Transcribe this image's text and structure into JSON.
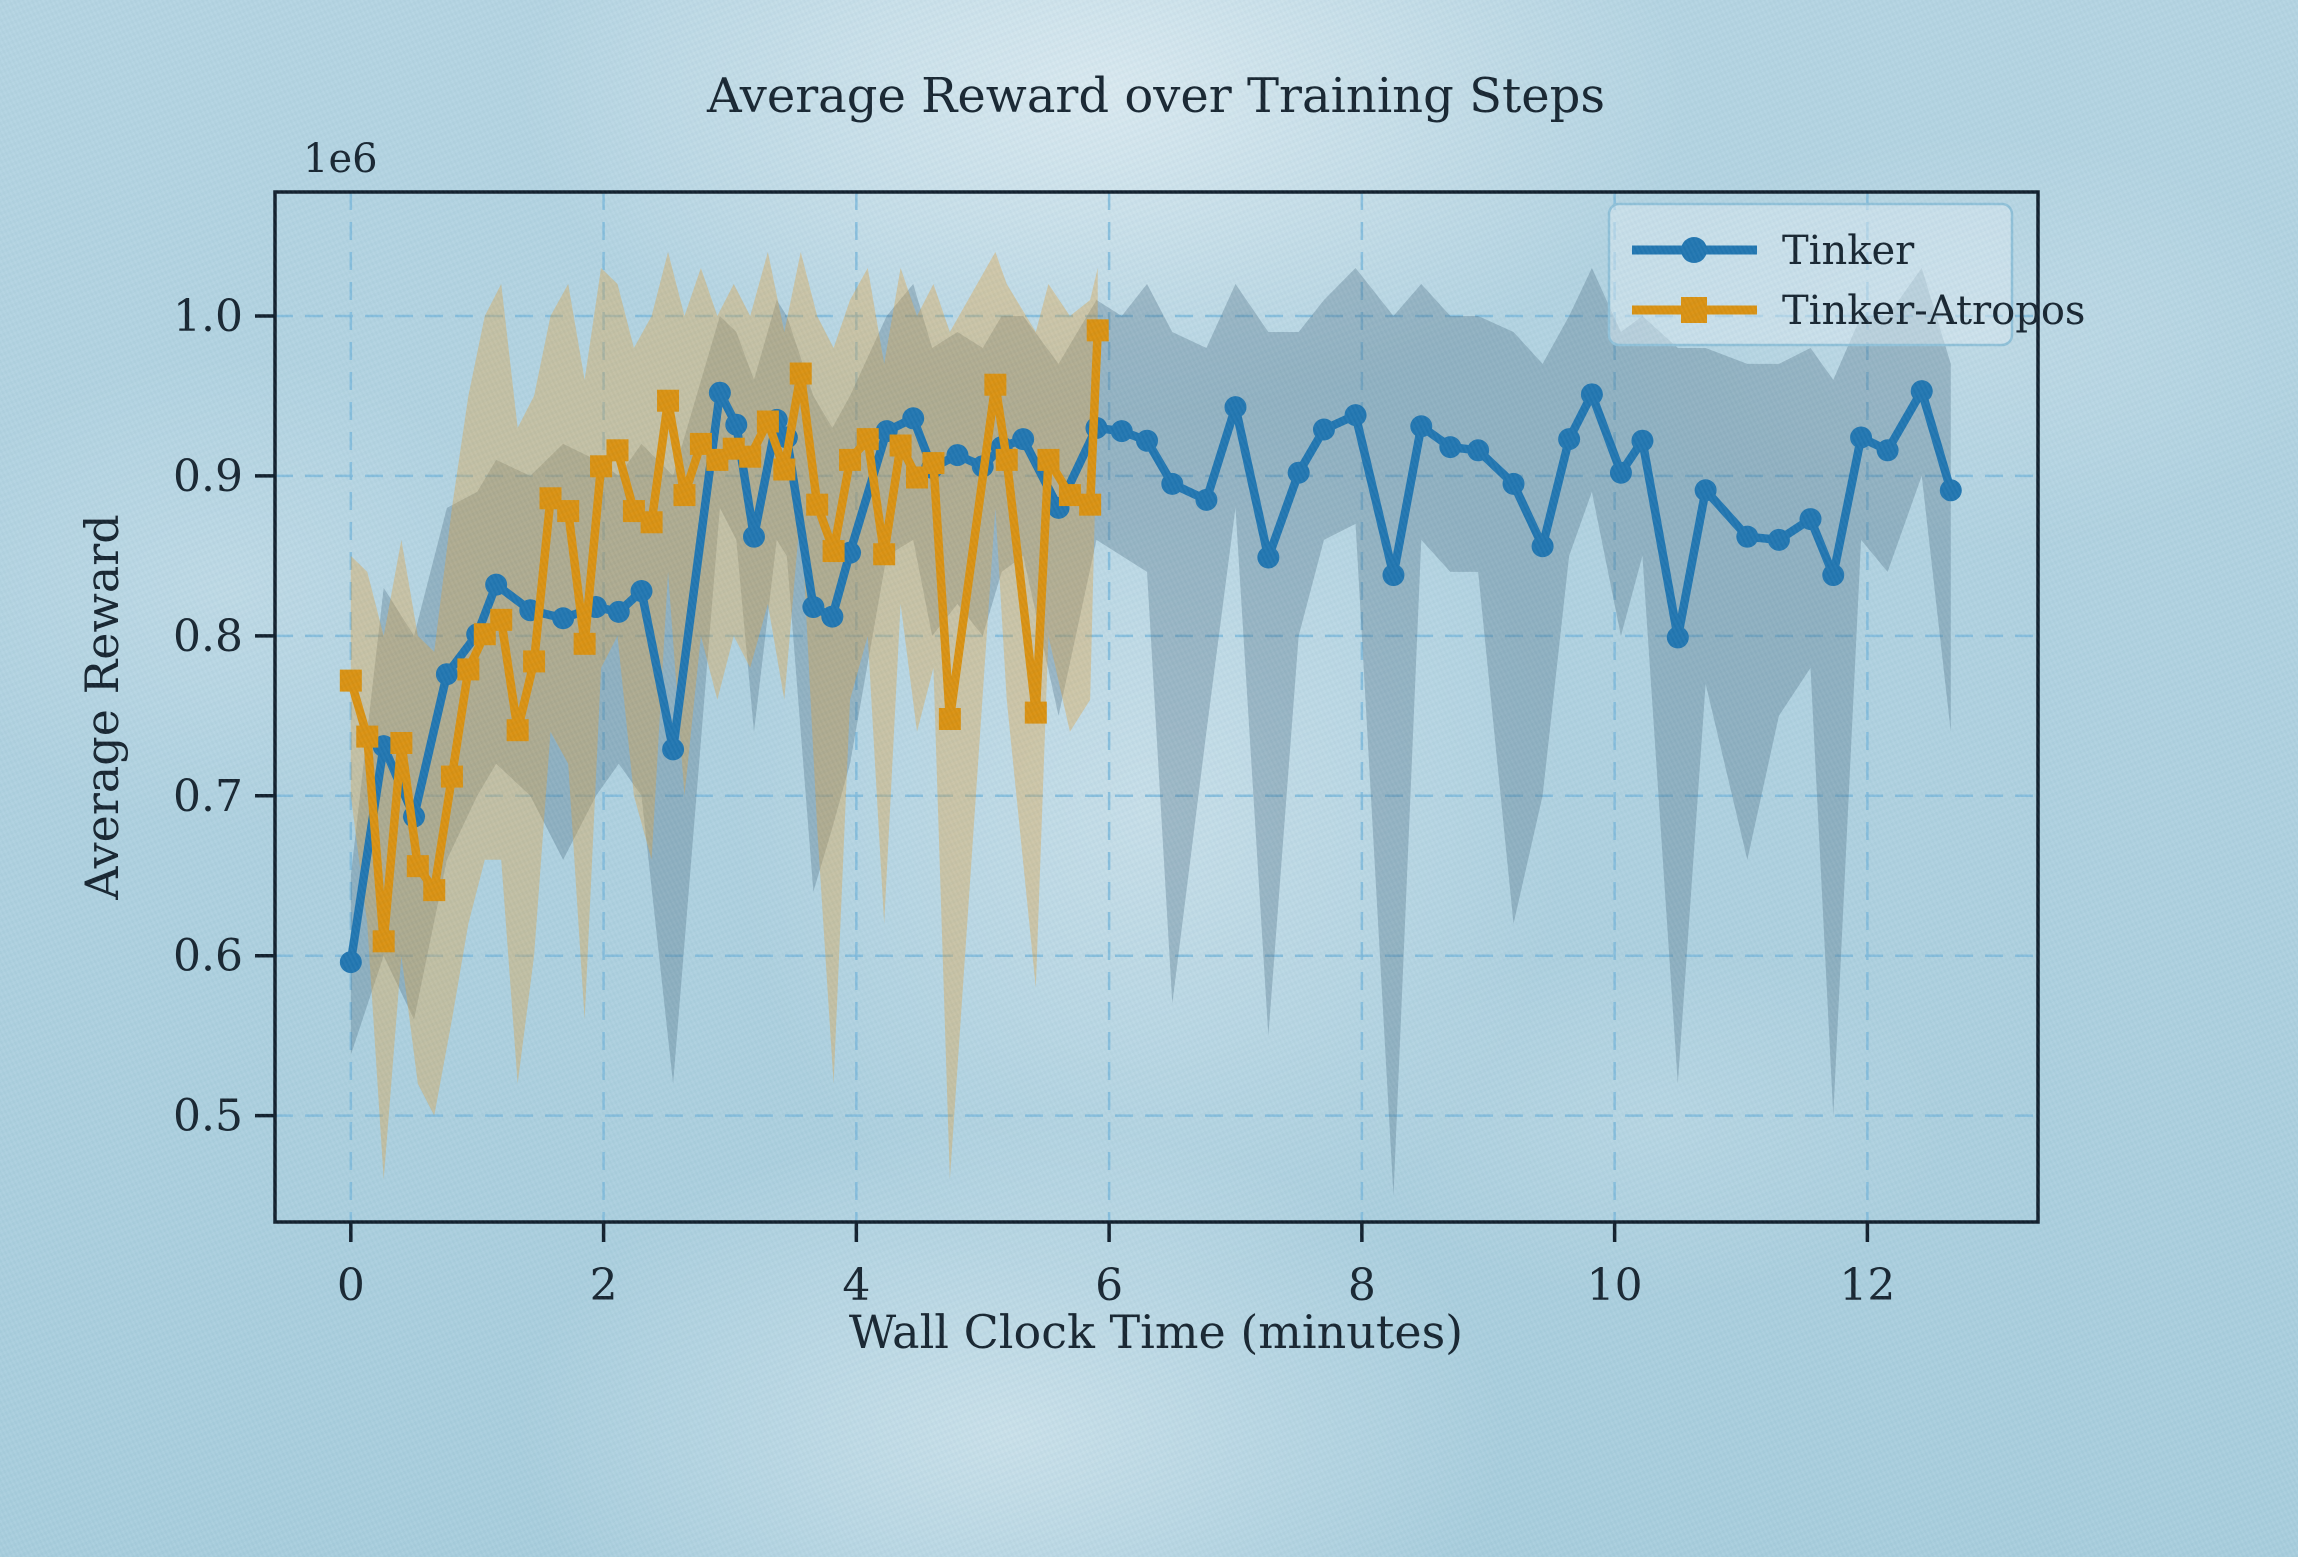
{
  "figure": {
    "title": "Average Reward over Training Steps",
    "xlabel": "Wall Clock Time (minutes)",
    "ylabel": "Average Reward",
    "y_offset_label": "1e6",
    "legend_items": [
      {
        "label": "Tinker",
        "color": "#1e74b0",
        "marker": "circle"
      },
      {
        "label": "Tinker-Atropos",
        "color": "#d9900e",
        "marker": "square"
      }
    ]
  },
  "chart_data": {
    "type": "line",
    "title": "Average Reward over Training Steps",
    "xlabel": "Wall Clock Time (minutes)",
    "ylabel": "Average Reward",
    "y_scale_note": "y values are in units of 1e6 (axis offset label '1e6')",
    "grid": true,
    "grid_style": "dashed",
    "grid_color": "#7db9da",
    "legend_position": "upper right",
    "xlim": [
      -0.6,
      13.35
    ],
    "ylim_1e6": [
      0.4335,
      1.0775
    ],
    "xticks": [
      0,
      2,
      4,
      6,
      8,
      10,
      12
    ],
    "xtick_labels": [
      "0",
      "2",
      "4",
      "6",
      "8",
      "10",
      "12"
    ],
    "yticks_1e6": [
      0.5,
      0.6,
      0.7,
      0.8,
      0.9,
      1.0
    ],
    "ytick_labels": [
      "0.5",
      "0.6",
      "0.7",
      "0.8",
      "0.9",
      "1.0"
    ],
    "series": [
      {
        "name": "Tinker",
        "color": "#1e74b0",
        "marker": "circle",
        "band_color": "#4a6a80",
        "band_opacity": 0.33,
        "x": [
          0.0,
          0.26,
          0.5,
          0.76,
          1.0,
          1.15,
          1.42,
          1.68,
          1.94,
          2.12,
          2.3,
          2.55,
          2.92,
          3.05,
          3.19,
          3.37,
          3.45,
          3.66,
          3.81,
          3.95,
          4.24,
          4.45,
          4.6,
          4.8,
          5.0,
          5.15,
          5.32,
          5.6,
          5.9,
          6.1,
          6.3,
          6.5,
          6.77,
          7.0,
          7.26,
          7.5,
          7.7,
          7.95,
          8.25,
          8.47,
          8.7,
          8.92,
          9.2,
          9.43,
          9.64,
          9.82,
          10.05,
          10.22,
          10.5,
          10.72,
          11.05,
          11.3,
          11.55,
          11.73,
          11.95,
          12.16,
          12.43,
          12.66
        ],
        "y_1e6": [
          0.596,
          0.731,
          0.687,
          0.776,
          0.801,
          0.832,
          0.816,
          0.811,
          0.818,
          0.815,
          0.828,
          0.729,
          0.952,
          0.932,
          0.862,
          0.935,
          0.924,
          0.818,
          0.812,
          0.852,
          0.928,
          0.936,
          0.905,
          0.913,
          0.906,
          0.918,
          0.923,
          0.88,
          0.93,
          0.928,
          0.922,
          0.895,
          0.885,
          0.943,
          0.849,
          0.902,
          0.929,
          0.938,
          0.838,
          0.931,
          0.918,
          0.916,
          0.895,
          0.856,
          0.923,
          0.951,
          0.902,
          0.922,
          0.799,
          0.891,
          0.862,
          0.86,
          0.873,
          0.838,
          0.924,
          0.916,
          0.953,
          0.891
        ],
        "band_lower_1e6": [
          0.538,
          0.6,
          0.56,
          0.66,
          0.7,
          0.72,
          0.7,
          0.66,
          0.7,
          0.72,
          0.7,
          0.52,
          0.88,
          0.86,
          0.74,
          0.86,
          0.85,
          0.64,
          0.68,
          0.72,
          0.85,
          0.86,
          0.8,
          0.82,
          0.8,
          0.84,
          0.85,
          0.75,
          0.86,
          0.85,
          0.84,
          0.57,
          0.74,
          0.88,
          0.55,
          0.8,
          0.86,
          0.87,
          0.45,
          0.86,
          0.84,
          0.84,
          0.62,
          0.7,
          0.85,
          0.89,
          0.8,
          0.85,
          0.52,
          0.77,
          0.66,
          0.75,
          0.78,
          0.5,
          0.86,
          0.84,
          0.9,
          0.74
        ],
        "band_upper_1e6": [
          0.65,
          0.83,
          0.8,
          0.88,
          0.89,
          0.91,
          0.9,
          0.92,
          0.91,
          0.9,
          0.92,
          0.9,
          1.0,
          0.99,
          0.96,
          1.01,
          1.0,
          0.95,
          0.93,
          0.95,
          1.0,
          1.02,
          0.98,
          0.99,
          0.98,
          1.0,
          1.0,
          0.97,
          1.01,
          1.0,
          1.02,
          0.99,
          0.98,
          1.02,
          0.99,
          0.99,
          1.01,
          1.03,
          1.0,
          1.02,
          1.0,
          1.0,
          0.99,
          0.97,
          1.0,
          1.03,
          0.99,
          1.0,
          0.98,
          0.98,
          0.97,
          0.97,
          0.98,
          0.96,
          1.0,
          1.0,
          1.03,
          0.97
        ]
      },
      {
        "name": "Tinker-Atropos",
        "color": "#d9900e",
        "marker": "square",
        "band_color": "#dfa040",
        "band_opacity": 0.38,
        "x": [
          0.0,
          0.13,
          0.26,
          0.4,
          0.53,
          0.66,
          0.8,
          0.93,
          1.06,
          1.19,
          1.32,
          1.45,
          1.58,
          1.72,
          1.85,
          1.98,
          2.11,
          2.24,
          2.38,
          2.51,
          2.64,
          2.77,
          2.9,
          3.03,
          3.16,
          3.3,
          3.43,
          3.56,
          3.69,
          3.82,
          3.95,
          4.09,
          4.22,
          4.35,
          4.48,
          4.61,
          4.74,
          5.1,
          5.19,
          5.42,
          5.52,
          5.69,
          5.85,
          5.91
        ],
        "y_1e6": [
          0.772,
          0.737,
          0.609,
          0.733,
          0.656,
          0.641,
          0.712,
          0.779,
          0.801,
          0.81,
          0.741,
          0.784,
          0.886,
          0.878,
          0.795,
          0.906,
          0.916,
          0.878,
          0.871,
          0.947,
          0.888,
          0.92,
          0.91,
          0.917,
          0.912,
          0.934,
          0.904,
          0.964,
          0.882,
          0.853,
          0.91,
          0.923,
          0.851,
          0.919,
          0.899,
          0.908,
          0.748,
          0.957,
          0.91,
          0.752,
          0.91,
          0.888,
          0.882,
          0.991
        ],
        "band_lower_1e6": [
          0.7,
          0.62,
          0.46,
          0.6,
          0.52,
          0.5,
          0.56,
          0.62,
          0.66,
          0.66,
          0.52,
          0.6,
          0.74,
          0.72,
          0.56,
          0.78,
          0.8,
          0.7,
          0.66,
          0.84,
          0.7,
          0.8,
          0.76,
          0.8,
          0.78,
          0.82,
          0.76,
          0.88,
          0.68,
          0.52,
          0.76,
          0.8,
          0.62,
          0.82,
          0.74,
          0.78,
          0.46,
          0.88,
          0.76,
          0.58,
          0.8,
          0.74,
          0.76,
          0.95
        ],
        "band_upper_1e6": [
          0.85,
          0.84,
          0.8,
          0.86,
          0.8,
          0.79,
          0.88,
          0.95,
          1.0,
          1.02,
          0.93,
          0.95,
          1.0,
          1.02,
          0.96,
          1.03,
          1.02,
          0.98,
          1.0,
          1.04,
          1.0,
          1.03,
          1.0,
          1.02,
          1.0,
          1.04,
          0.99,
          1.04,
          1.0,
          0.98,
          1.01,
          1.03,
          0.97,
          1.03,
          1.0,
          1.02,
          0.99,
          1.04,
          1.02,
          0.99,
          1.02,
          1.0,
          1.01,
          1.03
        ]
      }
    ]
  },
  "colors": {
    "axes_spine": "#0e1c2a",
    "text": "#14222e",
    "grid": "#7db9da",
    "legend_fill": "#d7e8f0",
    "legend_border": "#8fc0d8",
    "background_sky": "#aed2e0"
  }
}
